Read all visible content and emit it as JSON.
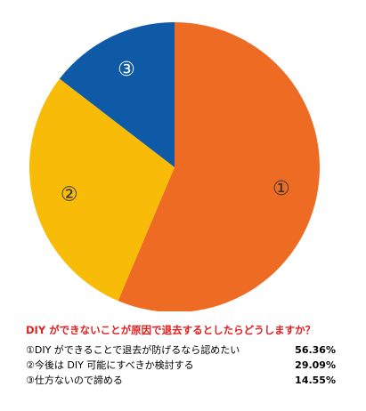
{
  "chart_data": {
    "type": "pie",
    "slices": [
      {
        "label": "①",
        "value": 56.36,
        "color": "#ee6b23"
      },
      {
        "label": "②",
        "value": 29.09,
        "color": "#f8bb07"
      },
      {
        "label": "③",
        "value": 14.55,
        "color": "#0f5aa6"
      }
    ],
    "title": "DIY ができないことが原因で退去するとしたらどうしますか？",
    "legend": [
      {
        "text": "①DIY ができることで退去が防げるなら認めたい",
        "value": "56.36%"
      },
      {
        "text": "②今後は DIY 可能にすべきか検討する",
        "value": "29.09%"
      },
      {
        "text": "③仕方ないので諦める",
        "value": "14.55%"
      }
    ]
  }
}
